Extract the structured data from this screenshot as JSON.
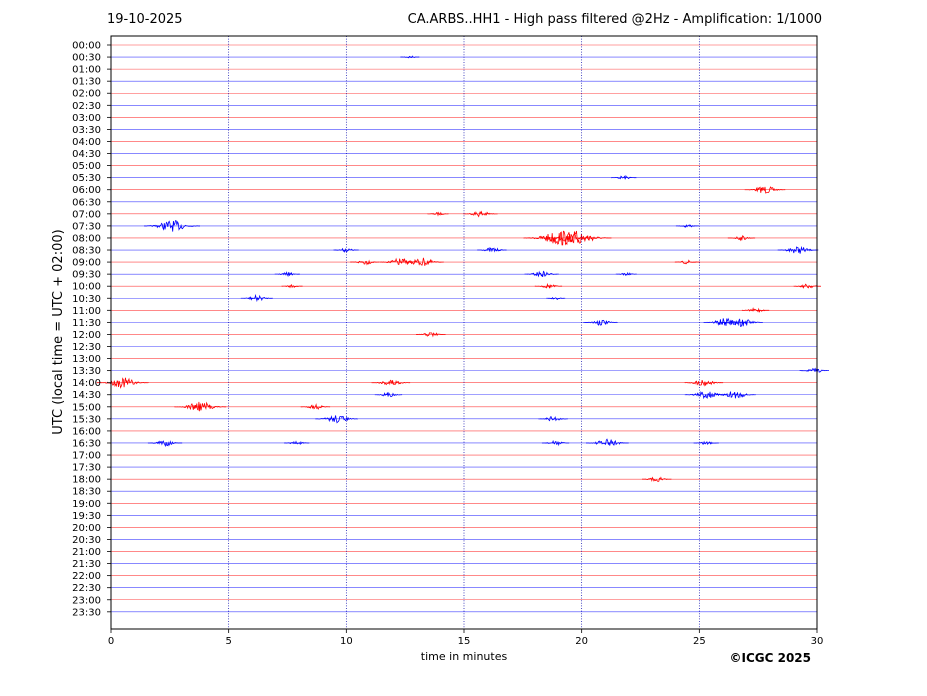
{
  "header": {
    "date": "19-10-2025",
    "title": "CA.ARBS..HH1 - High pass filtered @2Hz - Amplification: 1/1000"
  },
  "credit": "©ICGC 2025",
  "chart_data": {
    "type": "line",
    "title": "CA.ARBS..HH1 - High pass filtered @2Hz - Amplification: 1/1000",
    "xlabel": "time in minutes",
    "ylabel": "UTC (local time = UTC + 02:00)",
    "xlim": [
      0,
      30
    ],
    "xticks": [
      0,
      5,
      10,
      15,
      20,
      25,
      30
    ],
    "vertical_grid": [
      5,
      10,
      15,
      20,
      25
    ],
    "row_labels": [
      "00:00",
      "00:30",
      "01:00",
      "01:30",
      "02:00",
      "02:30",
      "03:00",
      "03:30",
      "04:00",
      "04:30",
      "05:00",
      "05:30",
      "06:00",
      "06:30",
      "07:00",
      "07:30",
      "08:00",
      "08:30",
      "09:00",
      "09:30",
      "10:00",
      "10:30",
      "11:00",
      "11:30",
      "12:00",
      "12:30",
      "13:00",
      "13:30",
      "14:00",
      "14:30",
      "15:00",
      "15:30",
      "16:00",
      "16:30",
      "17:00",
      "17:30",
      "18:00",
      "18:30",
      "19:00",
      "19:30",
      "20:00",
      "20:30",
      "21:00",
      "21:30",
      "22:00",
      "22:30",
      "23:00",
      "23:30"
    ],
    "colors": {
      "hour_trace": "#ff0000",
      "half_hour_trace": "#0000ff",
      "grid": "#0000aa"
    },
    "events": [
      {
        "row": "00:30",
        "minute": 12.7,
        "amp": 0.5
      },
      {
        "row": "05:30",
        "minute": 21.8,
        "amp": 0.8
      },
      {
        "row": "06:00",
        "minute": 27.8,
        "amp": 1.5
      },
      {
        "row": "07:00",
        "minute": 13.9,
        "amp": 0.6
      },
      {
        "row": "07:00",
        "minute": 15.7,
        "amp": 1.2
      },
      {
        "row": "07:30",
        "minute": 2.6,
        "amp": 2.2
      },
      {
        "row": "07:30",
        "minute": 24.5,
        "amp": 0.7
      },
      {
        "row": "08:00",
        "minute": 19.1,
        "amp": 3.0
      },
      {
        "row": "08:00",
        "minute": 19.8,
        "amp": 2.8
      },
      {
        "row": "08:00",
        "minute": 26.8,
        "amp": 0.9
      },
      {
        "row": "08:30",
        "minute": 10.0,
        "amp": 0.8
      },
      {
        "row": "08:30",
        "minute": 16.2,
        "amp": 1.0
      },
      {
        "row": "08:30",
        "minute": 29.2,
        "amp": 1.5
      },
      {
        "row": "09:00",
        "minute": 10.8,
        "amp": 1.0
      },
      {
        "row": "09:00",
        "minute": 12.3,
        "amp": 1.5
      },
      {
        "row": "09:00",
        "minute": 13.2,
        "amp": 1.7
      },
      {
        "row": "09:00",
        "minute": 24.5,
        "amp": 0.8
      },
      {
        "row": "09:30",
        "minute": 7.5,
        "amp": 0.8
      },
      {
        "row": "09:30",
        "minute": 18.3,
        "amp": 1.2
      },
      {
        "row": "09:30",
        "minute": 21.9,
        "amp": 0.6
      },
      {
        "row": "10:00",
        "minute": 7.7,
        "amp": 0.6
      },
      {
        "row": "10:00",
        "minute": 18.6,
        "amp": 0.9
      },
      {
        "row": "10:00",
        "minute": 29.6,
        "amp": 0.9
      },
      {
        "row": "10:30",
        "minute": 6.2,
        "amp": 1.1
      },
      {
        "row": "10:30",
        "minute": 18.9,
        "amp": 0.5
      },
      {
        "row": "11:00",
        "minute": 27.4,
        "amp": 0.9
      },
      {
        "row": "11:30",
        "minute": 20.8,
        "amp": 1.2
      },
      {
        "row": "11:30",
        "minute": 26.1,
        "amp": 1.6
      },
      {
        "row": "11:30",
        "minute": 26.8,
        "amp": 1.6
      },
      {
        "row": "12:00",
        "minute": 13.6,
        "amp": 1.0
      },
      {
        "row": "13:30",
        "minute": 29.9,
        "amp": 1.0
      },
      {
        "row": "14:00",
        "minute": 0.5,
        "amp": 2.0
      },
      {
        "row": "14:00",
        "minute": 11.9,
        "amp": 1.4
      },
      {
        "row": "14:00",
        "minute": 25.2,
        "amp": 1.4
      },
      {
        "row": "14:30",
        "minute": 11.8,
        "amp": 0.9
      },
      {
        "row": "14:30",
        "minute": 25.3,
        "amp": 1.6
      },
      {
        "row": "14:30",
        "minute": 26.5,
        "amp": 1.6
      },
      {
        "row": "15:00",
        "minute": 3.8,
        "amp": 2.0
      },
      {
        "row": "15:00",
        "minute": 8.7,
        "amp": 1.0
      },
      {
        "row": "15:30",
        "minute": 9.6,
        "amp": 1.6
      },
      {
        "row": "15:30",
        "minute": 18.8,
        "amp": 1.0
      },
      {
        "row": "16:30",
        "minute": 2.3,
        "amp": 1.2
      },
      {
        "row": "16:30",
        "minute": 7.9,
        "amp": 0.8
      },
      {
        "row": "16:30",
        "minute": 18.9,
        "amp": 0.9
      },
      {
        "row": "16:30",
        "minute": 21.1,
        "amp": 1.6
      },
      {
        "row": "16:30",
        "minute": 25.3,
        "amp": 0.8
      },
      {
        "row": "18:00",
        "minute": 23.2,
        "amp": 1.0
      }
    ]
  }
}
